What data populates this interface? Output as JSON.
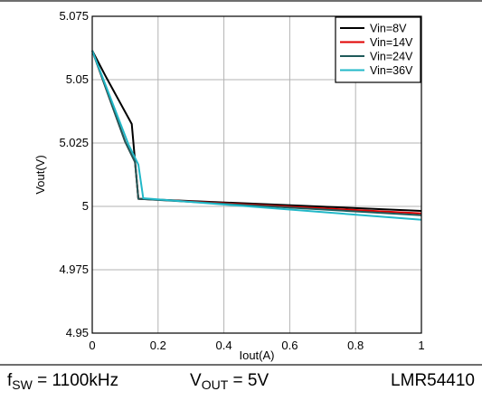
{
  "chart_data": {
    "type": "line",
    "xlabel": "Iout(A)",
    "ylabel": "Vout(V)",
    "xlim": [
      0,
      1
    ],
    "ylim": [
      4.95,
      5.075
    ],
    "xticks": [
      "0",
      "0.2",
      "0.4",
      "0.6",
      "0.8",
      "1"
    ],
    "xtick_values": [
      0,
      0.2,
      0.4,
      0.6,
      0.8,
      1
    ],
    "yticks": [
      "4.95",
      "4.975",
      "5",
      "5.025",
      "5.05",
      "5.075"
    ],
    "ytick_values": [
      4.95,
      4.975,
      5.0,
      5.025,
      5.05,
      5.075
    ],
    "grid": true,
    "legend_position": "top-right",
    "series": [
      {
        "name": "Vin=8V",
        "color": "#000000",
        "x": [
          0,
          0.04,
          0.12,
          0.14,
          1.0
        ],
        "y": [
          5.0615,
          5.0515,
          5.0325,
          5.003,
          4.9982
        ]
      },
      {
        "name": "Vin=14V",
        "color": "#e00000",
        "x": [
          0,
          0.1,
          0.13,
          0.14,
          1.0
        ],
        "y": [
          5.0615,
          5.0255,
          5.0175,
          5.003,
          4.9972
        ]
      },
      {
        "name": "Vin=24V",
        "color": "#1f5a5a",
        "x": [
          0,
          0.1,
          0.13,
          0.14,
          1.0
        ],
        "y": [
          5.0615,
          5.0255,
          5.0175,
          5.003,
          4.9965
        ]
      },
      {
        "name": "Vin=36V",
        "color": "#22b8c8",
        "x": [
          0,
          0.11,
          0.14,
          0.155,
          1.0
        ],
        "y": [
          5.0615,
          5.0245,
          5.0165,
          5.0032,
          4.9947
        ]
      }
    ]
  },
  "caption": {
    "fsw_prefix": "f",
    "fsw_sub": "SW",
    "fsw_value": " = 1100kHz",
    "vout_prefix": "V",
    "vout_sub": "OUT",
    "vout_value": " = 5V",
    "part": "LMR54410"
  }
}
